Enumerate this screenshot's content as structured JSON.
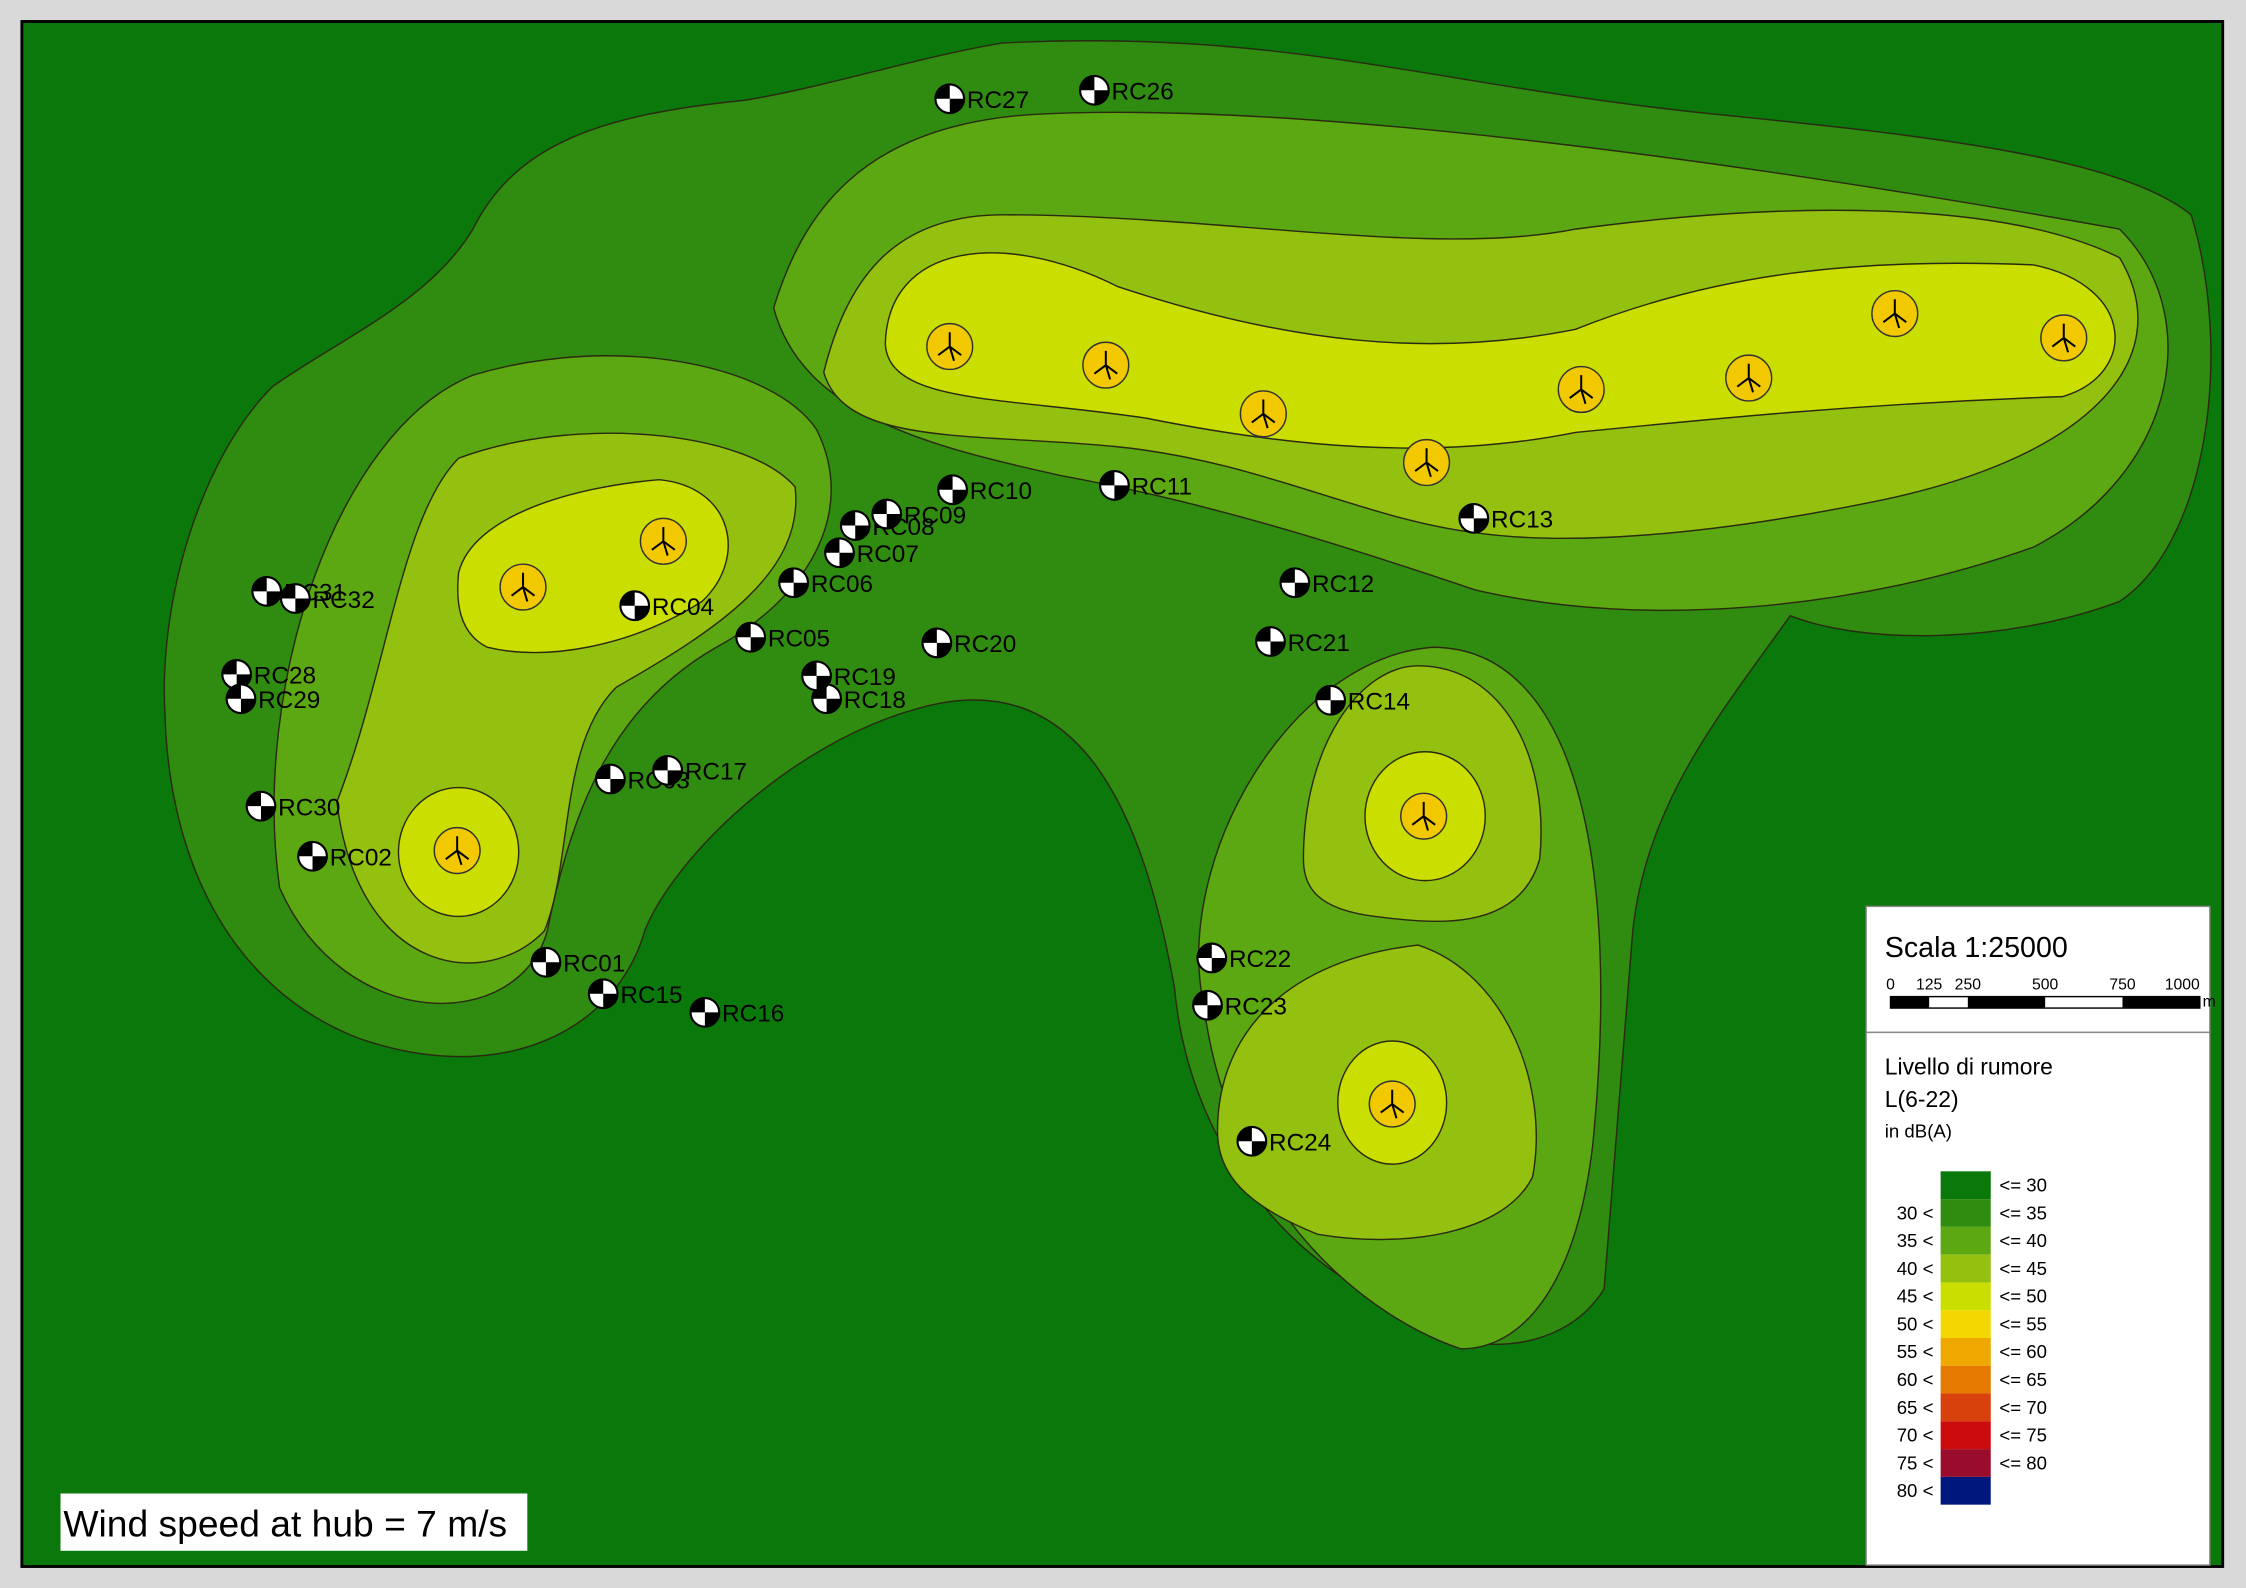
{
  "map": {
    "wind_note": "Wind speed at hub = 7 m/s",
    "scale": {
      "title": "Scala 1:25000",
      "ticks": [
        "0",
        "125",
        "250",
        "500",
        "750",
        "1000"
      ],
      "unit": "m"
    },
    "legend": {
      "title": [
        "Livello di rumore",
        "L(6-22)"
      ],
      "unit_line": "in dB(A)",
      "rows": [
        {
          "upper": "<= 30",
          "color": "#0b780b"
        },
        {
          "lower": "30 <",
          "upper": "<= 35",
          "color": "#2f8c10"
        },
        {
          "lower": "35 <",
          "upper": "<= 40",
          "color": "#5ca812"
        },
        {
          "lower": "40 <",
          "upper": "<= 45",
          "color": "#94c010"
        },
        {
          "lower": "45 <",
          "upper": "<= 50",
          "color": "#cade00"
        },
        {
          "lower": "50 <",
          "upper": "<= 55",
          "color": "#f2d800"
        },
        {
          "lower": "55 <",
          "upper": "<= 60",
          "color": "#eea800"
        },
        {
          "lower": "60 <",
          "upper": "<= 65",
          "color": "#e67a00"
        },
        {
          "lower": "65 <",
          "upper": "<= 70",
          "color": "#d8400c"
        },
        {
          "lower": "70 <",
          "upper": "<= 75",
          "color": "#cc0c0c"
        },
        {
          "lower": "75 <",
          "upper": "<= 80",
          "color": "#9a0c2c"
        },
        {
          "lower": "80 <",
          "color": "#00187e"
        }
      ]
    },
    "receptors": [
      "RC01",
      "RC02",
      "RC03",
      "RC04",
      "RC05",
      "RC06",
      "RC07",
      "RC08",
      "RC09",
      "RC10",
      "RC11",
      "RC12",
      "RC13",
      "RC14",
      "RC15",
      "RC16",
      "RC17",
      "RC18",
      "RC19",
      "RC20",
      "RC21",
      "RC22",
      "RC23",
      "RC24",
      "RC26",
      "RC27",
      "RC28",
      "RC29",
      "RC30",
      "RC31",
      "RC32"
    ]
  }
}
